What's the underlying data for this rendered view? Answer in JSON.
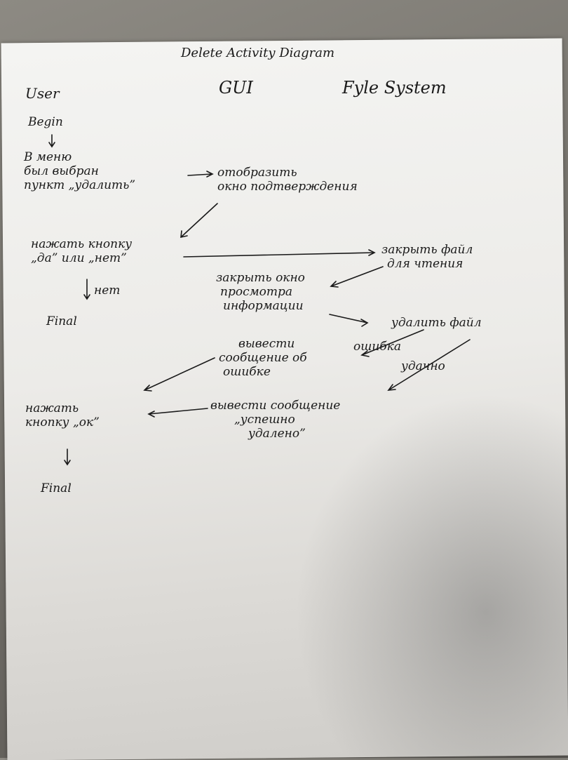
{
  "title": "Delete Activity Diagram",
  "swimlanes": {
    "user": "User",
    "gui": "GUI",
    "file_system": "Fyle System"
  },
  "nodes": {
    "begin": "Begin",
    "menu_select": [
      "В меню",
      "был выбран",
      "пункт „удалить”"
    ],
    "show_confirm": [
      "отобразить",
      "окно подтверждения"
    ],
    "press_yes_no": [
      "нажать кнопку",
      "„да” или „нет”"
    ],
    "no_label": "нет",
    "final_1": "Final",
    "close_file": [
      "закрыть файл",
      "для чтения"
    ],
    "close_view": [
      "закрыть окно",
      "просмотра",
      "информации"
    ],
    "delete_file": "удалить файл",
    "error": "ошибка",
    "success": "удачно",
    "show_error": [
      "вывести",
      "сообщение об",
      "ошибке"
    ],
    "show_success": [
      "вывести сообщение",
      "„успешно",
      "удалено”"
    ],
    "press_ok": [
      "нажать",
      "кнопку „ок”"
    ],
    "final_2": "Final"
  }
}
